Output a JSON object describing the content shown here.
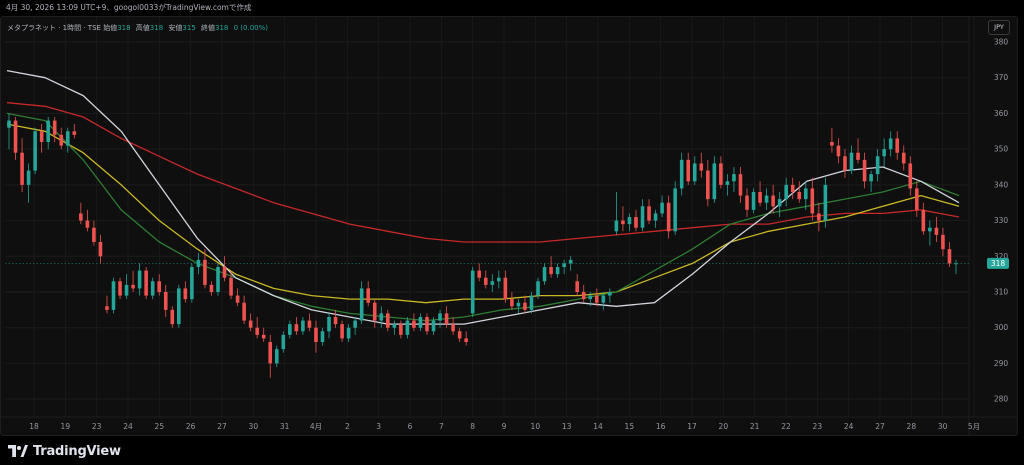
{
  "topbar": {
    "text": "4月 30, 2026 13:09 UTC+9、googol0033がTradingView.comで作成"
  },
  "legend": {
    "symbol": "メタプラネット · 1時間 · TSE",
    "open_label": "始値",
    "open": "318",
    "high_label": "高値",
    "high": "318",
    "low_label": "安値",
    "low": "315",
    "close_label": "終値",
    "close": "318",
    "change": "0 (0.00%)"
  },
  "currency_button": "JPY",
  "price_badge": "318",
  "brand": {
    "name": "TradingView"
  },
  "colors": {
    "up": "#26a69a",
    "down": "#ef5350",
    "ma_white": "#d1d4dc",
    "ma_green": "#2e7d32",
    "ma_yellow": "#c9b826",
    "ma_red": "#c62828"
  },
  "chart_data": {
    "type": "candlestick",
    "timeframe": "1時間",
    "y_axis_ticks": [
      380,
      370,
      360,
      350,
      340,
      330,
      320,
      310,
      300,
      290,
      280
    ],
    "ylim": [
      275,
      387
    ],
    "x_axis_ticks": [
      "18",
      "19",
      "23",
      "24",
      "25",
      "26",
      "27",
      "30",
      "31",
      "4月",
      "2",
      "3",
      "6",
      "7",
      "8",
      "9",
      "10",
      "13",
      "14",
      "15",
      "16",
      "17",
      "20",
      "21",
      "22",
      "23",
      "24",
      "27",
      "28",
      "30",
      "5月"
    ],
    "last_price": 318,
    "candles": [
      [
        356,
        360,
        350,
        358
      ],
      [
        358,
        359,
        347,
        349
      ],
      [
        349,
        353,
        338,
        340
      ],
      [
        340,
        346,
        335,
        344
      ],
      [
        344,
        356,
        343,
        355
      ],
      [
        355,
        357,
        349,
        352
      ],
      [
        352,
        359,
        350,
        358
      ],
      [
        358,
        359,
        352,
        354
      ],
      [
        354,
        356,
        350,
        351
      ],
      [
        351,
        356,
        349,
        355
      ],
      [
        355,
        357,
        353,
        354
      ],
      [
        332,
        335,
        329,
        330
      ],
      [
        330,
        333,
        327,
        328
      ],
      [
        328,
        330,
        323,
        324
      ],
      [
        324,
        326,
        318,
        320
      ],
      [
        306,
        309,
        304,
        305
      ],
      [
        305,
        314,
        304,
        313
      ],
      [
        313,
        314,
        308,
        309
      ],
      [
        309,
        315,
        308,
        312
      ],
      [
        312,
        316,
        310,
        311
      ],
      [
        311,
        318,
        309,
        316
      ],
      [
        316,
        317,
        308,
        309
      ],
      [
        309,
        314,
        308,
        313
      ],
      [
        313,
        315,
        309,
        310
      ],
      [
        310,
        312,
        303,
        305
      ],
      [
        305,
        306,
        300,
        301
      ],
      [
        301,
        312,
        300,
        311
      ],
      [
        311,
        313,
        307,
        308
      ],
      [
        308,
        318,
        307,
        317
      ],
      [
        317,
        321,
        315,
        319
      ],
      [
        319,
        322,
        311,
        312
      ],
      [
        312,
        313,
        309,
        310
      ],
      [
        310,
        318,
        309,
        317
      ],
      [
        317,
        320,
        313,
        314
      ],
      [
        314,
        316,
        308,
        309
      ],
      [
        309,
        311,
        306,
        307
      ],
      [
        307,
        309,
        301,
        302
      ],
      [
        302,
        304,
        299,
        300
      ],
      [
        300,
        303,
        297,
        298
      ],
      [
        298,
        300,
        296,
        297
      ],
      [
        296,
        298,
        286,
        290
      ],
      [
        290,
        295,
        289,
        294
      ],
      [
        294,
        299,
        293,
        298
      ],
      [
        298,
        302,
        297,
        301
      ],
      [
        301,
        303,
        298,
        299
      ],
      [
        299,
        303,
        298,
        302
      ],
      [
        302,
        304,
        299,
        300
      ],
      [
        300,
        302,
        293,
        296
      ],
      [
        296,
        300,
        295,
        299
      ],
      [
        299,
        304,
        297,
        303
      ],
      [
        303,
        305,
        300,
        301
      ],
      [
        301,
        302,
        296,
        297
      ],
      [
        297,
        301,
        296,
        300
      ],
      [
        300,
        303,
        298,
        302
      ],
      [
        302,
        313,
        301,
        311
      ],
      [
        311,
        313,
        306,
        307
      ],
      [
        307,
        308,
        300,
        302
      ],
      [
        302,
        306,
        300,
        304
      ],
      [
        304,
        305,
        299,
        300
      ],
      [
        300,
        302,
        298,
        301
      ],
      [
        301,
        302,
        297,
        298
      ],
      [
        298,
        303,
        297,
        302
      ],
      [
        302,
        304,
        299,
        300
      ],
      [
        300,
        304,
        299,
        303
      ],
      [
        303,
        304,
        298,
        299
      ],
      [
        299,
        303,
        298,
        302
      ],
      [
        302,
        305,
        300,
        304
      ],
      [
        304,
        306,
        300,
        301
      ],
      [
        301,
        303,
        298,
        299
      ],
      [
        299,
        300,
        296,
        297
      ],
      [
        297,
        299,
        295,
        296
      ],
      [
        304,
        317,
        303,
        316
      ],
      [
        316,
        318,
        313,
        314
      ],
      [
        314,
        316,
        311,
        312
      ],
      [
        312,
        315,
        310,
        313
      ],
      [
        313,
        316,
        311,
        314
      ],
      [
        314,
        316,
        307,
        308
      ],
      [
        308,
        310,
        305,
        306
      ],
      [
        306,
        308,
        304,
        307
      ],
      [
        307,
        309,
        304,
        305
      ],
      [
        305,
        310,
        304,
        309
      ],
      [
        309,
        314,
        308,
        313
      ],
      [
        313,
        318,
        312,
        317
      ],
      [
        317,
        320,
        314,
        315
      ],
      [
        315,
        318,
        314,
        317
      ],
      [
        317,
        319,
        315,
        318
      ],
      [
        318,
        320,
        316,
        319
      ],
      [
        313,
        315,
        309,
        310
      ],
      [
        310,
        312,
        307,
        308
      ],
      [
        308,
        310,
        306,
        309
      ],
      [
        309,
        311,
        306,
        307
      ],
      [
        307,
        310,
        305,
        309
      ],
      [
        309,
        311,
        307,
        310
      ],
      [
        327,
        338,
        326,
        330
      ],
      [
        330,
        334,
        327,
        329
      ],
      [
        329,
        332,
        327,
        331
      ],
      [
        331,
        333,
        327,
        328
      ],
      [
        328,
        336,
        327,
        334
      ],
      [
        334,
        336,
        329,
        330
      ],
      [
        330,
        333,
        328,
        332
      ],
      [
        332,
        337,
        331,
        335
      ],
      [
        335,
        337,
        325,
        327
      ],
      [
        327,
        341,
        326,
        339
      ],
      [
        339,
        349,
        337,
        347
      ],
      [
        347,
        349,
        340,
        341
      ],
      [
        341,
        348,
        340,
        346
      ],
      [
        346,
        349,
        342,
        344
      ],
      [
        344,
        347,
        334,
        336
      ],
      [
        336,
        348,
        335,
        346
      ],
      [
        346,
        348,
        339,
        340
      ],
      [
        340,
        343,
        337,
        341
      ],
      [
        341,
        345,
        338,
        343
      ],
      [
        343,
        345,
        335,
        337
      ],
      [
        337,
        339,
        331,
        333
      ],
      [
        333,
        339,
        332,
        338
      ],
      [
        338,
        341,
        334,
        335
      ],
      [
        335,
        339,
        333,
        337
      ],
      [
        337,
        340,
        332,
        334
      ],
      [
        334,
        338,
        331,
        336
      ],
      [
        336,
        342,
        334,
        340
      ],
      [
        340,
        342,
        336,
        338
      ],
      [
        338,
        341,
        335,
        336
      ],
      [
        336,
        341,
        333,
        339
      ],
      [
        339,
        342,
        330,
        332
      ],
      [
        332,
        335,
        327,
        330
      ],
      [
        330,
        342,
        328,
        340
      ],
      [
        352,
        356,
        349,
        351
      ],
      [
        351,
        353,
        346,
        348
      ],
      [
        348,
        350,
        342,
        344
      ],
      [
        344,
        351,
        343,
        349
      ],
      [
        349,
        353,
        346,
        347
      ],
      [
        347,
        349,
        339,
        341
      ],
      [
        341,
        344,
        338,
        343
      ],
      [
        343,
        350,
        341,
        348
      ],
      [
        348,
        353,
        345,
        350
      ],
      [
        350,
        355,
        348,
        353
      ],
      [
        353,
        355,
        347,
        349
      ],
      [
        349,
        351,
        344,
        346
      ],
      [
        346,
        348,
        337,
        339
      ],
      [
        339,
        341,
        331,
        333
      ],
      [
        333,
        335,
        326,
        327
      ],
      [
        327,
        330,
        323,
        328
      ],
      [
        328,
        331,
        324,
        326
      ],
      [
        326,
        328,
        320,
        322
      ],
      [
        322,
        324,
        317,
        318
      ],
      [
        318,
        319,
        315,
        318
      ]
    ],
    "moving_averages": [
      {
        "color": "white",
        "values": [
          372,
          370,
          365,
          355,
          340,
          325,
          314,
          309,
          305,
          303,
          301,
          301,
          301,
          303,
          305,
          307,
          306,
          307,
          315,
          324,
          332,
          341,
          344,
          345,
          341,
          335
        ]
      },
      {
        "color": "green",
        "values": [
          360,
          358,
          347,
          333,
          324,
          318,
          314,
          309,
          306,
          304,
          303,
          302,
          303,
          305,
          306,
          308,
          310,
          316,
          322,
          329,
          332,
          334,
          336,
          338,
          341,
          337
        ]
      },
      {
        "color": "yellow",
        "values": [
          357,
          355,
          349,
          340,
          330,
          322,
          315,
          311,
          309,
          308,
          308,
          307,
          308,
          308,
          309,
          309,
          310,
          314,
          318,
          324,
          327,
          329,
          331,
          334,
          337,
          334
        ]
      },
      {
        "color": "red",
        "values": [
          363,
          362,
          359,
          353,
          348,
          343,
          339,
          335,
          332,
          329,
          327,
          325,
          324,
          324,
          324,
          325,
          326,
          327,
          328,
          329,
          329,
          331,
          332,
          332,
          333,
          331
        ]
      }
    ]
  }
}
